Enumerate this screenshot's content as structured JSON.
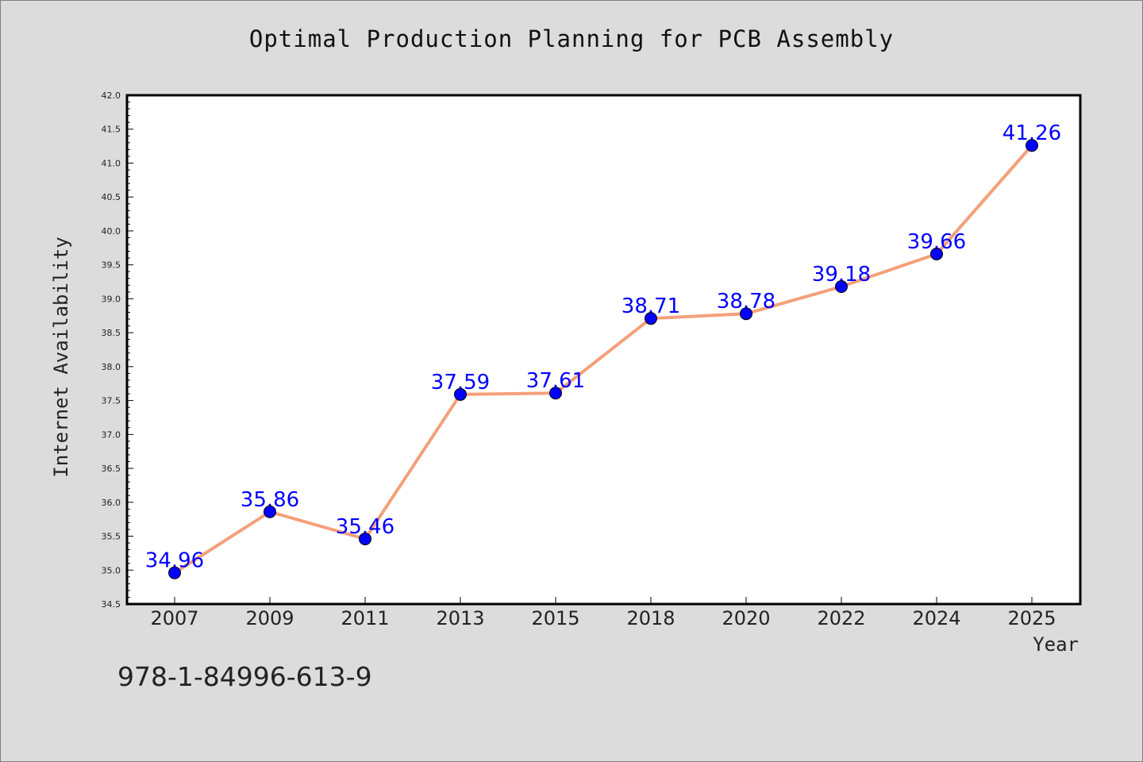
{
  "colors": {
    "background": "#dcdcdc",
    "plot_background": "#ffffff",
    "line": "#f4a07a",
    "marker": "#0000ff",
    "data_label": "#0000ff"
  },
  "footer_text": "978-1-84996-613-9",
  "chart_data": {
    "type": "line",
    "title": "Optimal Production Planning for PCB Assembly",
    "xlabel": "Year",
    "ylabel": "Internet Availability",
    "categories": [
      "2007",
      "2009",
      "2011",
      "2013",
      "2015",
      "2018",
      "2020",
      "2022",
      "2024",
      "2025"
    ],
    "series": [
      {
        "values": [
          34.96,
          35.86,
          35.46,
          37.59,
          37.61,
          38.71,
          38.78,
          39.18,
          39.66,
          41.26
        ]
      }
    ],
    "ylim": [
      34.5,
      42.0
    ],
    "yticks": [
      "34.5",
      "35.0",
      "35.5",
      "36.0",
      "36.5",
      "37.0",
      "37.5",
      "38.0",
      "38.5",
      "39.0",
      "39.5",
      "40.0",
      "40.5",
      "41.0",
      "41.5",
      "42.0"
    ],
    "grid": false,
    "legend": "none"
  }
}
